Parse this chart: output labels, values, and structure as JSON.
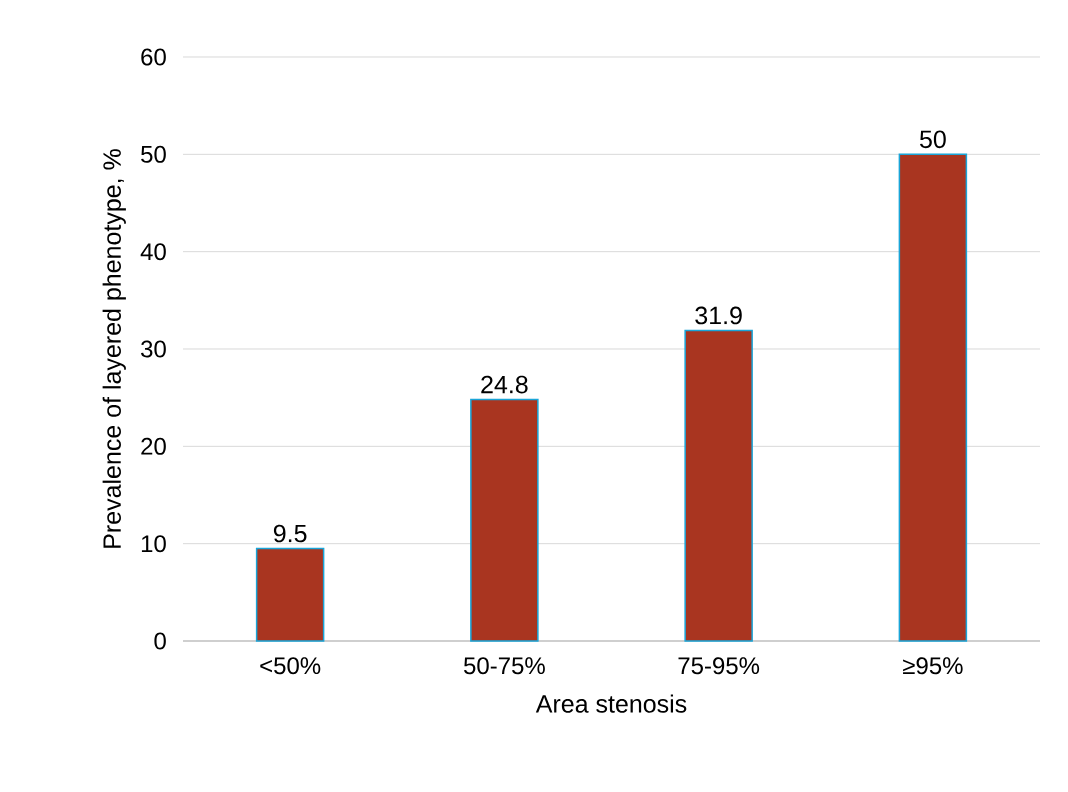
{
  "chart_data": {
    "type": "bar",
    "xlabel": "Area stenosis",
    "ylabel": "Prevalence of layered phenotype, %",
    "categories": [
      "<50%",
      "50-75%",
      "75-95%",
      "≥95%"
    ],
    "values": [
      9.5,
      24.8,
      31.9,
      50
    ],
    "color": "#a93520",
    "ylim": [
      0,
      60
    ],
    "yticks": [
      0,
      10,
      20,
      30,
      40,
      50,
      60
    ],
    "grid": "y",
    "data_labels": true
  }
}
